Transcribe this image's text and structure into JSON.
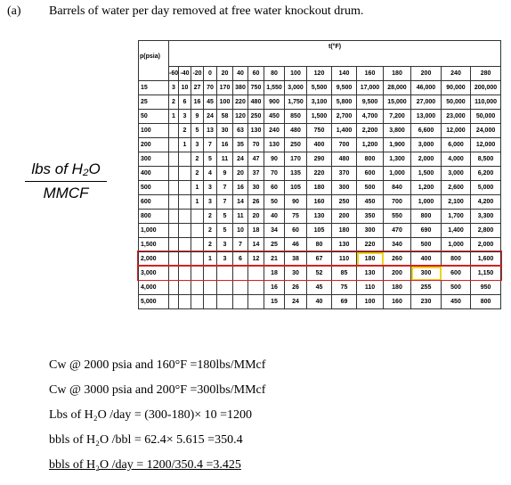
{
  "heading": {
    "label": "(a)",
    "title": "Barrels of water per day removed at free water knockout drum."
  },
  "unit_label": {
    "numerator": "lbs of H₂O",
    "denominator": "MMCF"
  },
  "table": {
    "corner": "p(psia)",
    "t_header": "t(°F)",
    "columns": [
      -60,
      -40,
      -20,
      0,
      20,
      40,
      60,
      80,
      100,
      120,
      140,
      160,
      180,
      200,
      240,
      280
    ],
    "rows": [
      {
        "p": "15",
        "values": [
          "3",
          "10",
          "27",
          "70",
          "170",
          "380",
          "750",
          "1,550",
          "3,000",
          "5,500",
          "9,500",
          "17,000",
          "28,000",
          "46,000",
          "90,000",
          "200,000"
        ]
      },
      {
        "p": "25",
        "values": [
          "2",
          "6",
          "16",
          "45",
          "100",
          "220",
          "480",
          "900",
          "1,750",
          "3,100",
          "5,800",
          "9,500",
          "15,000",
          "27,000",
          "50,000",
          "110,000"
        ]
      },
      {
        "p": "50",
        "values": [
          "1",
          "3",
          "9",
          "24",
          "58",
          "120",
          "250",
          "450",
          "850",
          "1,500",
          "2,700",
          "4,700",
          "7,200",
          "13,000",
          "23,000",
          "50,000"
        ]
      },
      {
        "p": "100",
        "values": [
          null,
          "2",
          "5",
          "13",
          "30",
          "63",
          "130",
          "240",
          "480",
          "750",
          "1,400",
          "2,200",
          "3,800",
          "6,600",
          "12,000",
          "24,000"
        ]
      },
      {
        "p": "200",
        "values": [
          null,
          "1",
          "3",
          "7",
          "16",
          "35",
          "70",
          "130",
          "250",
          "400",
          "700",
          "1,200",
          "1,900",
          "3,000",
          "6,000",
          "12,000"
        ]
      },
      {
        "p": "300",
        "values": [
          null,
          null,
          "2",
          "5",
          "11",
          "24",
          "47",
          "90",
          "170",
          "290",
          "480",
          "800",
          "1,300",
          "2,000",
          "4,000",
          "8,500"
        ]
      },
      {
        "p": "400",
        "values": [
          null,
          null,
          "2",
          "4",
          "9",
          "20",
          "37",
          "70",
          "135",
          "220",
          "370",
          "600",
          "1,000",
          "1,500",
          "3,000",
          "6,200"
        ]
      },
      {
        "p": "500",
        "values": [
          null,
          null,
          "1",
          "3",
          "7",
          "16",
          "30",
          "60",
          "105",
          "180",
          "300",
          "500",
          "840",
          "1,200",
          "2,600",
          "5,000"
        ]
      },
      {
        "p": "600",
        "values": [
          null,
          null,
          "1",
          "3",
          "7",
          "14",
          "26",
          "50",
          "90",
          "160",
          "250",
          "450",
          "700",
          "1,000",
          "2,100",
          "4,200"
        ]
      },
      {
        "p": "800",
        "values": [
          null,
          null,
          null,
          "2",
          "5",
          "11",
          "20",
          "40",
          "75",
          "130",
          "200",
          "350",
          "550",
          "800",
          "1,700",
          "3,300"
        ]
      },
      {
        "p": "1,000",
        "values": [
          null,
          null,
          null,
          "2",
          "5",
          "10",
          "18",
          "34",
          "60",
          "105",
          "180",
          "300",
          "470",
          "690",
          "1,400",
          "2,800"
        ]
      },
      {
        "p": "1,500",
        "values": [
          null,
          null,
          null,
          "2",
          "3",
          "7",
          "14",
          "25",
          "46",
          "80",
          "130",
          "220",
          "340",
          "500",
          "1,000",
          "2,000"
        ]
      },
      {
        "p": "2,000",
        "values": [
          null,
          null,
          null,
          "1",
          "3",
          "6",
          "12",
          "21",
          "38",
          "67",
          "110",
          "180",
          "260",
          "400",
          "800",
          "1,600"
        ]
      },
      {
        "p": "3,000",
        "values": [
          null,
          null,
          null,
          null,
          null,
          null,
          null,
          "18",
          "30",
          "52",
          "85",
          "130",
          "200",
          "300",
          "600",
          "1,150"
        ]
      },
      {
        "p": "4,000",
        "values": [
          null,
          null,
          null,
          null,
          null,
          null,
          null,
          "16",
          "26",
          "45",
          "75",
          "110",
          "180",
          "255",
          "500",
          "950"
        ]
      },
      {
        "p": "5,000",
        "values": [
          null,
          null,
          null,
          null,
          null,
          null,
          null,
          "15",
          "24",
          "40",
          "69",
          "100",
          "160",
          "230",
          "450",
          "800"
        ]
      }
    ]
  },
  "calculations": [
    "Cw @ 2000 psia and 160°F =180lbs/MMcf",
    "Cw @ 3000 psia and 200°F =300lbs/MMcf",
    "Lbs of H₂O /day = (300-180)× 10 =1200",
    "bbls of H₂O /bbl = 62.4× 5.615 =350.4",
    "bbls of H₂O /day = 1200/350.4 =3.425"
  ]
}
